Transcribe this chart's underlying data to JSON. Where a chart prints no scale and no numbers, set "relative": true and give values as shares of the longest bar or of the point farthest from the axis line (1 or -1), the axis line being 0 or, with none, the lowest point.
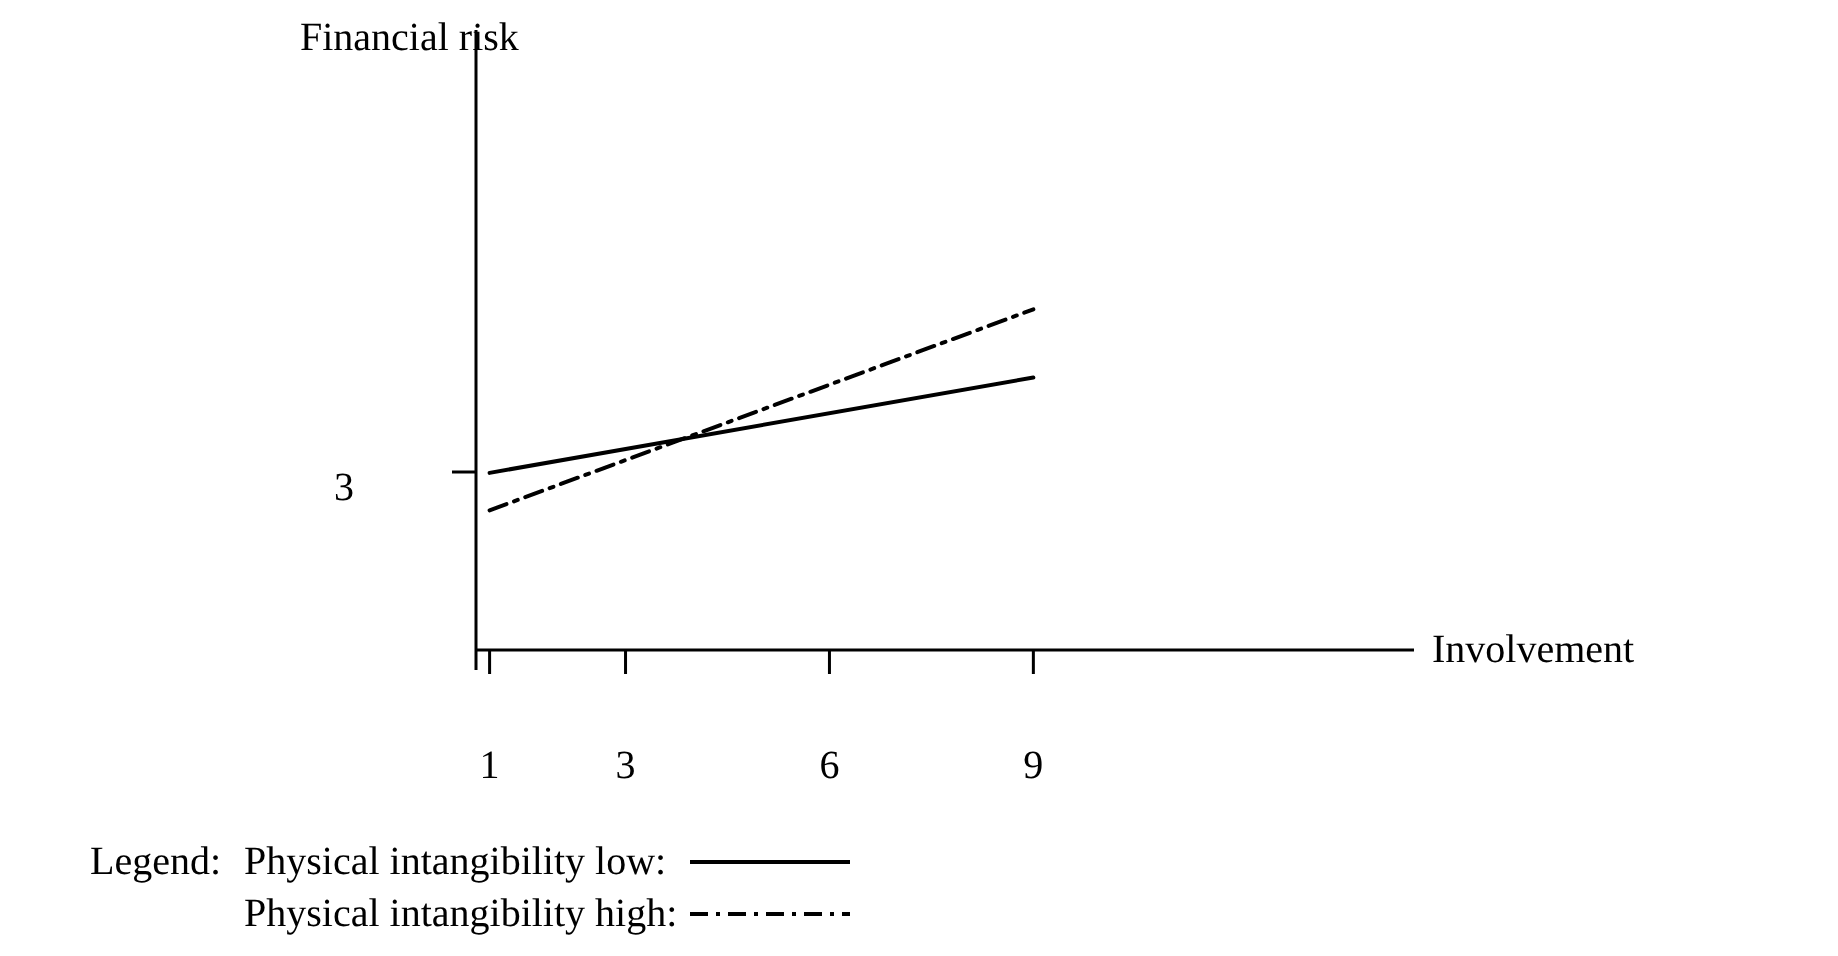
{
  "chart_data": {
    "type": "line",
    "relative": true,
    "xlabel": "Involvement",
    "legend_title": "Legend:",
    "legend": "bottom",
    "grid": false,
    "xlim": [
      0.8,
      14.6
    ],
    "xticks": [
      1,
      3,
      6,
      9
    ],
    "x": [
      1,
      9
    ],
    "annotations": [
      "Financial risk",
      "3"
    ],
    "series": [
      {
        "name": "Physical intangibility low:",
        "color": "#000000",
        "line_style": "solid",
        "values": [
          0.52,
          0.8
        ]
      },
      {
        "name": "Physical intangibility high:",
        "color": "#000000",
        "line_style": "dashed",
        "values": [
          0.41,
          1
        ]
      }
    ]
  }
}
